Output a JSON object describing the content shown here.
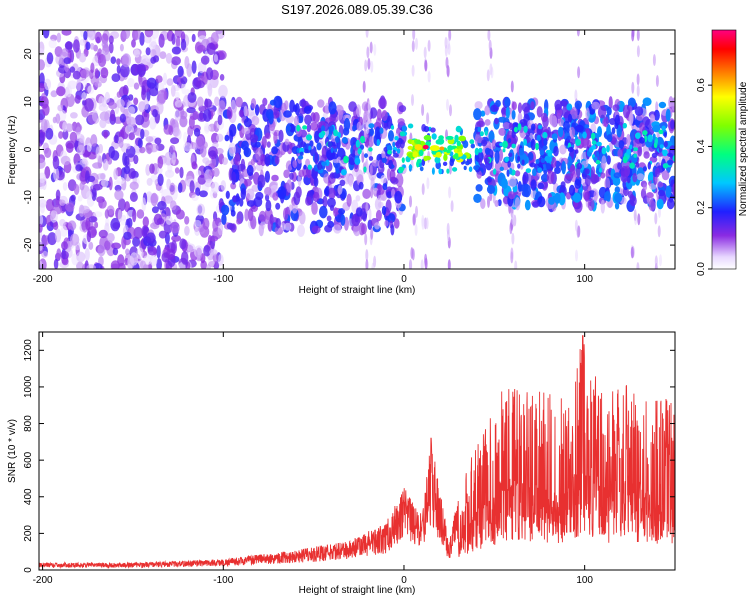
{
  "title": "S197.2026.089.05.39.C36",
  "chart_data": [
    {
      "type": "heatmap",
      "xlabel": "Height of straight line (km)",
      "ylabel": "Frequency (Hz)",
      "xlim": [
        -202,
        150
      ],
      "ylim": [
        -25,
        25
      ],
      "x_ticks": [
        -200,
        -100,
        0,
        100
      ],
      "y_ticks": [
        -20,
        -10,
        0,
        10,
        20
      ],
      "colorbar": {
        "label": "Normalized spectral amplitude",
        "range": [
          0,
          0.78
        ],
        "ticks": [
          "0.0",
          "0.2",
          "0.4",
          "0.6"
        ],
        "tick_values": [
          0,
          0.2,
          0.4,
          0.6
        ],
        "colormap": "rainbow (white-violet-blue-cyan-green-yellow-red-magenta)"
      },
      "grid": false,
      "features": [
        {
          "x_range": [
            -202,
            -100
          ],
          "freq_range": [
            -25,
            25
          ],
          "amplitude": "0.05-0.15 (diffuse noise)"
        },
        {
          "x_range": [
            -100,
            0
          ],
          "freq_range": [
            -18,
            12
          ],
          "amplitude": "0.1-0.3"
        },
        {
          "x_range": [
            0,
            40
          ],
          "freq_range": [
            -3,
            3
          ],
          "amplitude": "up to 0.78 (peak near x=12, f=0.5)"
        },
        {
          "x_range": [
            40,
            150
          ],
          "freq_range": [
            -12,
            12
          ],
          "amplitude": "0.1-0.4"
        }
      ]
    },
    {
      "type": "line",
      "xlabel": "Height of straight line (km)",
      "ylabel": "SNR (10 * v/v)",
      "xlim": [
        -202,
        150
      ],
      "ylim": [
        0,
        1300
      ],
      "x_ticks": [
        -200,
        -100,
        0,
        100
      ],
      "y_ticks": [
        0,
        200,
        400,
        600,
        800,
        1000,
        1200
      ],
      "color": "#e83030",
      "grid": false,
      "envelope": [
        {
          "x": -200,
          "y": 40
        },
        {
          "x": -150,
          "y": 40
        },
        {
          "x": -100,
          "y": 60
        },
        {
          "x": -60,
          "y": 110
        },
        {
          "x": -30,
          "y": 160
        },
        {
          "x": -10,
          "y": 260
        },
        {
          "x": 0,
          "y": 450
        },
        {
          "x": 10,
          "y": 300
        },
        {
          "x": 15,
          "y": 720
        },
        {
          "x": 25,
          "y": 150
        },
        {
          "x": 30,
          "y": 430
        },
        {
          "x": 40,
          "y": 700
        },
        {
          "x": 50,
          "y": 900
        },
        {
          "x": 55,
          "y": 1040
        },
        {
          "x": 70,
          "y": 980
        },
        {
          "x": 80,
          "y": 1000
        },
        {
          "x": 90,
          "y": 950
        },
        {
          "x": 99,
          "y": 1280
        },
        {
          "x": 110,
          "y": 950
        },
        {
          "x": 125,
          "y": 1040
        },
        {
          "x": 135,
          "y": 940
        },
        {
          "x": 150,
          "y": 950
        }
      ]
    }
  ]
}
